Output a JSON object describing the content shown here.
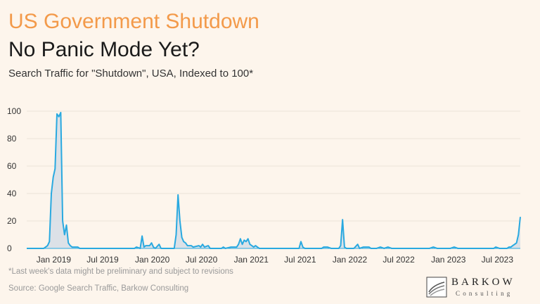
{
  "header": {
    "title": "US Government Shutdown",
    "subtitle_title": "No Panic Mode Yet?",
    "description": "Search Traffic for \"Shutdown\", USA, Indexed to 100*"
  },
  "footer": {
    "footnote": "*Last week's data might be preliminary and subject to revisions",
    "source": "Source: Google Search Traffic, Barkow Consulting"
  },
  "logo": {
    "name": "BARKOW",
    "tagline": "Consulting"
  },
  "colors": {
    "title_accent": "#f39a4a",
    "line": "#29a9e0",
    "fill": "#d6dde6",
    "background": "#fdf5ec"
  },
  "chart_data": {
    "type": "area",
    "title": "",
    "xlabel": "",
    "ylabel": "",
    "ylim": [
      0,
      100
    ],
    "yticks": [
      0,
      20,
      40,
      60,
      80,
      100
    ],
    "xlim": [
      "2018-09-23",
      "2023-09-24"
    ],
    "xticks": [
      {
        "date": "2019-01-01",
        "label": "Jan 2019"
      },
      {
        "date": "2019-07-01",
        "label": "Jul 2019"
      },
      {
        "date": "2020-01-01",
        "label": "Jan 2020"
      },
      {
        "date": "2020-07-01",
        "label": "Jul 2020"
      },
      {
        "date": "2021-01-01",
        "label": "Jan 2021"
      },
      {
        "date": "2021-07-01",
        "label": "Jul 2021"
      },
      {
        "date": "2022-01-01",
        "label": "Jan 2022"
      },
      {
        "date": "2022-07-01",
        "label": "Jul 2022"
      },
      {
        "date": "2023-01-01",
        "label": "Jan 2023"
      },
      {
        "date": "2023-07-01",
        "label": "Jul 2023"
      }
    ],
    "grid": true,
    "series": [
      {
        "points": [
          [
            "2018-09-23",
            0
          ],
          [
            "2018-11-25",
            0
          ],
          [
            "2018-12-02",
            1
          ],
          [
            "2018-12-09",
            2
          ],
          [
            "2018-12-16",
            5
          ],
          [
            "2018-12-23",
            40
          ],
          [
            "2018-12-30",
            52
          ],
          [
            "2019-01-06",
            58
          ],
          [
            "2019-01-13",
            98
          ],
          [
            "2019-01-20",
            96
          ],
          [
            "2019-01-27",
            99
          ],
          [
            "2019-02-03",
            20
          ],
          [
            "2019-02-10",
            10
          ],
          [
            "2019-02-17",
            17
          ],
          [
            "2019-02-24",
            4
          ],
          [
            "2019-03-03",
            2
          ],
          [
            "2019-03-10",
            1
          ],
          [
            "2019-03-31",
            1
          ],
          [
            "2019-04-07",
            0
          ],
          [
            "2019-10-27",
            0
          ],
          [
            "2019-11-03",
            1
          ],
          [
            "2019-11-17",
            0
          ],
          [
            "2019-11-24",
            9
          ],
          [
            "2019-12-01",
            1
          ],
          [
            "2019-12-08",
            2
          ],
          [
            "2019-12-22",
            2
          ],
          [
            "2019-12-29",
            4
          ],
          [
            "2020-01-05",
            1
          ],
          [
            "2020-01-12",
            0
          ],
          [
            "2020-01-26",
            3
          ],
          [
            "2020-02-02",
            0
          ],
          [
            "2020-03-22",
            0
          ],
          [
            "2020-03-29",
            10
          ],
          [
            "2020-04-05",
            39
          ],
          [
            "2020-04-12",
            20
          ],
          [
            "2020-04-19",
            8
          ],
          [
            "2020-04-26",
            5
          ],
          [
            "2020-05-03",
            4
          ],
          [
            "2020-05-10",
            2
          ],
          [
            "2020-05-24",
            2
          ],
          [
            "2020-05-31",
            1
          ],
          [
            "2020-06-21",
            2
          ],
          [
            "2020-06-28",
            1
          ],
          [
            "2020-07-05",
            3
          ],
          [
            "2020-07-12",
            1
          ],
          [
            "2020-07-26",
            2
          ],
          [
            "2020-08-02",
            0
          ],
          [
            "2020-09-13",
            0
          ],
          [
            "2020-09-20",
            1
          ],
          [
            "2020-09-27",
            0
          ],
          [
            "2020-10-18",
            1
          ],
          [
            "2020-11-08",
            1
          ],
          [
            "2020-11-15",
            3
          ],
          [
            "2020-11-22",
            7
          ],
          [
            "2020-11-29",
            3
          ],
          [
            "2020-12-06",
            6
          ],
          [
            "2020-12-13",
            5
          ],
          [
            "2020-12-20",
            7
          ],
          [
            "2020-12-27",
            3
          ],
          [
            "2021-01-03",
            2
          ],
          [
            "2021-01-10",
            1
          ],
          [
            "2021-01-17",
            2
          ],
          [
            "2021-01-24",
            1
          ],
          [
            "2021-01-31",
            0
          ],
          [
            "2021-06-27",
            0
          ],
          [
            "2021-07-04",
            5
          ],
          [
            "2021-07-11",
            1
          ],
          [
            "2021-07-18",
            0
          ],
          [
            "2021-09-19",
            0
          ],
          [
            "2021-09-26",
            1
          ],
          [
            "2021-10-10",
            1
          ],
          [
            "2021-10-24",
            0
          ],
          [
            "2021-11-21",
            0
          ],
          [
            "2021-11-28",
            2
          ],
          [
            "2021-12-05",
            21
          ],
          [
            "2021-12-12",
            1
          ],
          [
            "2021-12-19",
            0
          ],
          [
            "2022-01-16",
            0
          ],
          [
            "2022-01-30",
            3
          ],
          [
            "2022-02-06",
            0
          ],
          [
            "2022-02-20",
            1
          ],
          [
            "2022-03-13",
            1
          ],
          [
            "2022-03-20",
            0
          ],
          [
            "2022-04-10",
            0
          ],
          [
            "2022-04-24",
            1
          ],
          [
            "2022-05-08",
            0
          ],
          [
            "2022-05-22",
            1
          ],
          [
            "2022-06-05",
            0
          ],
          [
            "2022-10-23",
            0
          ],
          [
            "2022-11-06",
            1
          ],
          [
            "2022-11-20",
            0
          ],
          [
            "2023-01-08",
            0
          ],
          [
            "2023-01-22",
            1
          ],
          [
            "2023-02-05",
            0
          ],
          [
            "2023-06-18",
            0
          ],
          [
            "2023-06-25",
            1
          ],
          [
            "2023-07-09",
            0
          ],
          [
            "2023-08-06",
            0
          ],
          [
            "2023-08-13",
            1
          ],
          [
            "2023-08-20",
            1
          ],
          [
            "2023-08-27",
            2
          ],
          [
            "2023-09-03",
            3
          ],
          [
            "2023-09-10",
            4
          ],
          [
            "2023-09-17",
            10
          ],
          [
            "2023-09-24",
            23
          ]
        ]
      }
    ]
  }
}
